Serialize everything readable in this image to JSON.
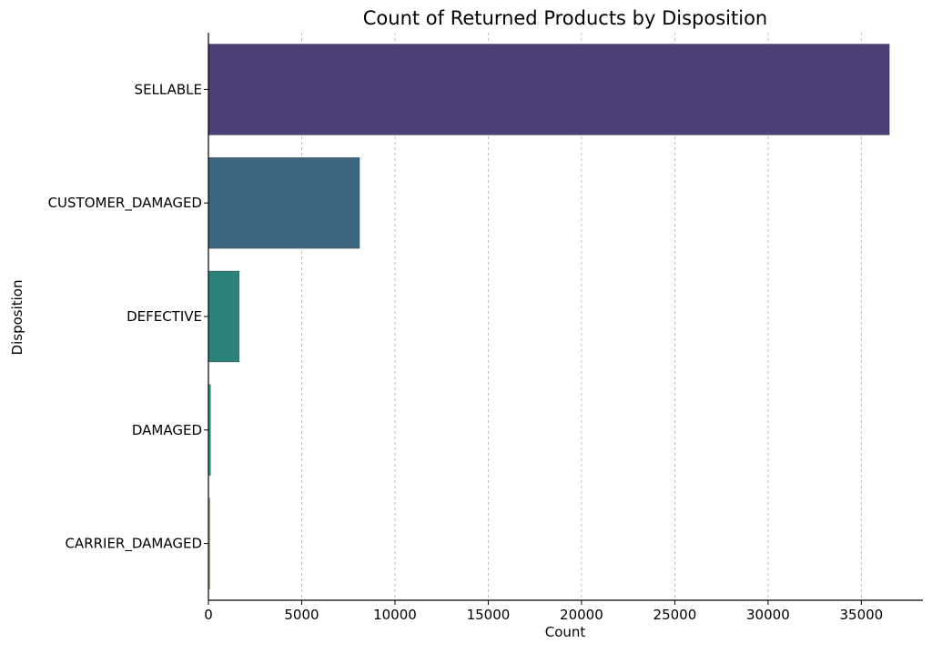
{
  "chart_data": {
    "type": "bar",
    "orientation": "horizontal",
    "title": "Count of Returned Products by Disposition",
    "xlabel": "Count",
    "ylabel": "Disposition",
    "categories": [
      "SELLABLE",
      "CUSTOMER_DAMAGED",
      "DEFECTIVE",
      "DAMAGED",
      "CARRIER_DAMAGED"
    ],
    "values": [
      36500,
      8100,
      1650,
      110,
      70
    ],
    "colors": [
      "#4b3f76",
      "#3c6580",
      "#2a8279",
      "#2fa072",
      "#9cd33a"
    ],
    "xlim": [
      0,
      38300
    ],
    "xticks": [
      0,
      5000,
      10000,
      15000,
      20000,
      25000,
      30000,
      35000
    ],
    "grid": "x-dashed",
    "legend": "none"
  }
}
